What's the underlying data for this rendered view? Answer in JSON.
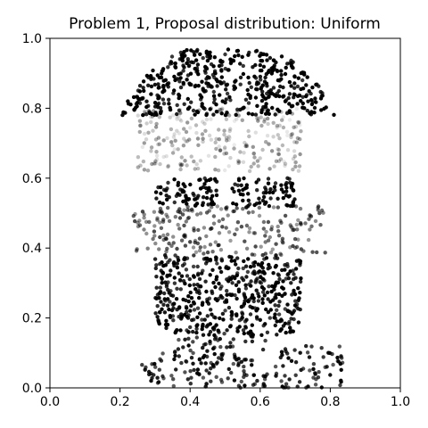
{
  "chart_data": {
    "type": "scatter",
    "title": "Problem 1, Proposal distribution: Uniform",
    "xlabel": "",
    "ylabel": "",
    "xlim": [
      0.0,
      1.0
    ],
    "ylim": [
      0.0,
      1.0
    ],
    "xticks": [
      "0.0",
      "0.2",
      "0.4",
      "0.6",
      "0.8",
      "1.0"
    ],
    "yticks": [
      "0.0",
      "0.2",
      "0.4",
      "0.6",
      "0.8",
      "1.0"
    ],
    "grid": false,
    "legend": "none",
    "point_color": "#000000",
    "description_regions": [
      {
        "region": "hair",
        "x": [
          0.2,
          0.82
        ],
        "y": [
          0.78,
          0.97
        ],
        "density": "high",
        "intensity": 0.95
      },
      {
        "region": "forehead",
        "x": [
          0.25,
          0.72
        ],
        "y": [
          0.62,
          0.8
        ],
        "density": "medium",
        "intensity": 0.25
      },
      {
        "region": "eyes-left",
        "x": [
          0.3,
          0.48
        ],
        "y": [
          0.52,
          0.6
        ],
        "density": "high",
        "intensity": 0.95
      },
      {
        "region": "eyes-right",
        "x": [
          0.52,
          0.7
        ],
        "y": [
          0.52,
          0.6
        ],
        "density": "high",
        "intensity": 0.95
      },
      {
        "region": "cheeks",
        "x": [
          0.22,
          0.82
        ],
        "y": [
          0.38,
          0.52
        ],
        "density": "medium",
        "intensity": 0.55
      },
      {
        "region": "mouth-chin",
        "x": [
          0.3,
          0.72
        ],
        "y": [
          0.15,
          0.38
        ],
        "density": "high",
        "intensity": 0.9
      },
      {
        "region": "neck-shoulders",
        "x": [
          0.26,
          0.84
        ],
        "y": [
          0.0,
          0.15
        ],
        "density": "medium",
        "intensity": 0.8
      }
    ]
  }
}
